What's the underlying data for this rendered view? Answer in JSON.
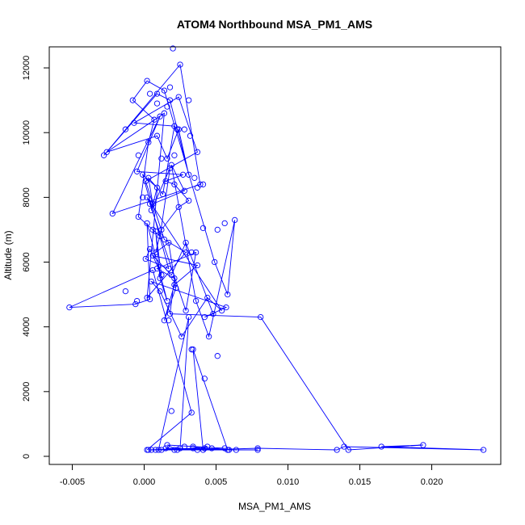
{
  "chart_data": {
    "type": "line",
    "title": "ATOM4 Northbound MSA_PM1_AMS",
    "xlabel": "MSA_PM1_AMS",
    "ylabel": "Altitude (m)",
    "xlim": [
      -0.0066,
      0.0248
    ],
    "ylim": [
      -250,
      12650
    ],
    "xticks": [
      "-0.005",
      "0.000",
      "0.005",
      "0.010",
      "0.015",
      "0.020"
    ],
    "xtick_values": [
      -0.005,
      0.0,
      0.005,
      0.01,
      0.015,
      0.02
    ],
    "yticks": [
      "0",
      "2000",
      "4000",
      "6000",
      "8000",
      "10000",
      "12000"
    ],
    "ytick_values": [
      0,
      2000,
      4000,
      6000,
      8000,
      10000,
      12000
    ],
    "grid": false,
    "legend": "none",
    "series": [
      {
        "color": "#0000ff",
        "marker": "open-circle",
        "x": [
          0.0002,
          0.0033,
          0.0006,
          -0.0052,
          -0.0006,
          0.0004,
          0.0002,
          0.0016,
          0.0011,
          0.0008,
          0.0012,
          0.0004,
          0.0001,
          0.0017,
          -0.0001,
          0.0009,
          0.0005,
          0.0018,
          0.0011,
          -0.0004,
          0.0003,
          0.0007,
          -0.0008,
          0.0002,
          0.0014,
          0.0049,
          0.0058,
          0.0063,
          0.0045,
          0.0036,
          0.0019,
          0.0028,
          0.0006,
          0.0003,
          0.0013,
          0.0021,
          -0.0007,
          0.0024,
          0.0037,
          0.0001,
          0.0014,
          0.0029,
          0.0002,
          0.0014,
          -0.0026,
          0.0009,
          0.0016,
          0.0024,
          0.0031,
          0.0018,
          0.0009,
          -0.0028,
          0.0025,
          0.0039,
          -0.0022,
          0.0011,
          -0.0005,
          0.0027,
          0.0015,
          0.0021,
          0.0031,
          0.0024,
          0.0012,
          0.0008,
          0.0017,
          0.0022,
          0.0014,
          0.0021,
          0.0037,
          0.0006,
          0.0019,
          0.0029,
          0.0048,
          0.0042,
          0.0057,
          0.0005,
          0.0011,
          0.0026,
          0.0044,
          0.0054,
          0.0002,
          0.0004,
          0.0029,
          0.0036,
          0.0009,
          0.0021,
          0.0018,
          0.0081,
          0.0142,
          0.0194,
          0.0165,
          0.0236,
          0.0139,
          0.0134,
          0.0079,
          0.0041,
          0.0034,
          0.0058,
          0.0042,
          0.0023,
          0.0016,
          0.0056,
          0.0008,
          0.0025,
          0.0031,
          0.001,
          0.0079,
          0.0003,
          0.0034,
          0.0044,
          0.0021,
          0.0059,
          0.0015,
          0.0037
        ],
        "y": [
          200,
          1350,
          5750,
          4600,
          4700,
          4850,
          7200,
          4800,
          5500,
          6950,
          5600,
          6400,
          6100,
          5800,
          8700,
          8300,
          7600,
          8900,
          6800,
          7400,
          9700,
          10400,
          11000,
          11600,
          11300,
          6000,
          5000,
          7300,
          3700,
          4800,
          9000,
          8200,
          7800,
          8600,
          8100,
          10200,
          10300,
          11100,
          9400,
          8500,
          6700,
          6300,
          4900,
          10600,
          9400,
          9900,
          9200,
          10100,
          8700,
          11000,
          11200,
          9300,
          12100,
          8400,
          7500,
          10500,
          8800,
          8700,
          8500,
          8400,
          7900,
          7700,
          7000,
          6300,
          6600,
          5200,
          4200,
          5300,
          5900,
          6200,
          5600,
          6600,
          4400,
          4300,
          4600,
          5400,
          5100,
          3700,
          4900,
          4500,
          8000,
          7800,
          4500,
          6300,
          5800,
          5500,
          4400,
          4300,
          200,
          350,
          300,
          200,
          300,
          200,
          250,
          200,
          3300,
          200,
          250,
          200,
          350,
          250,
          200,
          250,
          4300,
          200,
          200,
          200,
          250,
          300,
          200,
          200,
          250,
          200
        ],
        "extra_points": [
          [
            0.002,
            12600
          ],
          [
            0.0056,
            7200
          ],
          [
            0.0051,
            7000
          ],
          [
            0.0041,
            7050
          ],
          [
            0.0033,
            6300
          ],
          [
            0.0037,
            8300
          ],
          [
            0.0041,
            8400
          ],
          [
            0.0035,
            8600
          ],
          [
            0.0021,
            9300
          ],
          [
            0.0012,
            9200
          ],
          [
            0.0004,
            11200
          ],
          [
            0.0009,
            10900
          ],
          [
            0.0018,
            11400
          ],
          [
            0.0031,
            11000
          ],
          [
            0.0023,
            10100
          ],
          [
            0.0016,
            10800
          ],
          [
            0.0028,
            10100
          ],
          [
            0.0032,
            9900
          ],
          [
            -0.0013,
            10100
          ],
          [
            -0.0004,
            9300
          ],
          [
            -0.0001,
            8000
          ],
          [
            0.0006,
            7000
          ],
          [
            -0.0013,
            5100
          ],
          [
            -0.0005,
            4800
          ],
          [
            0.0017,
            4200
          ],
          [
            0.0033,
            3300
          ],
          [
            0.0051,
            3100
          ],
          [
            0.0042,
            2400
          ],
          [
            0.0019,
            1400
          ],
          [
            0.0034,
            300
          ],
          [
            0.0047,
            250
          ],
          [
            0.0028,
            300
          ],
          [
            0.0005,
            200
          ],
          [
            0.0012,
            200
          ],
          [
            0.0064,
            200
          ]
        ]
      }
    ]
  }
}
